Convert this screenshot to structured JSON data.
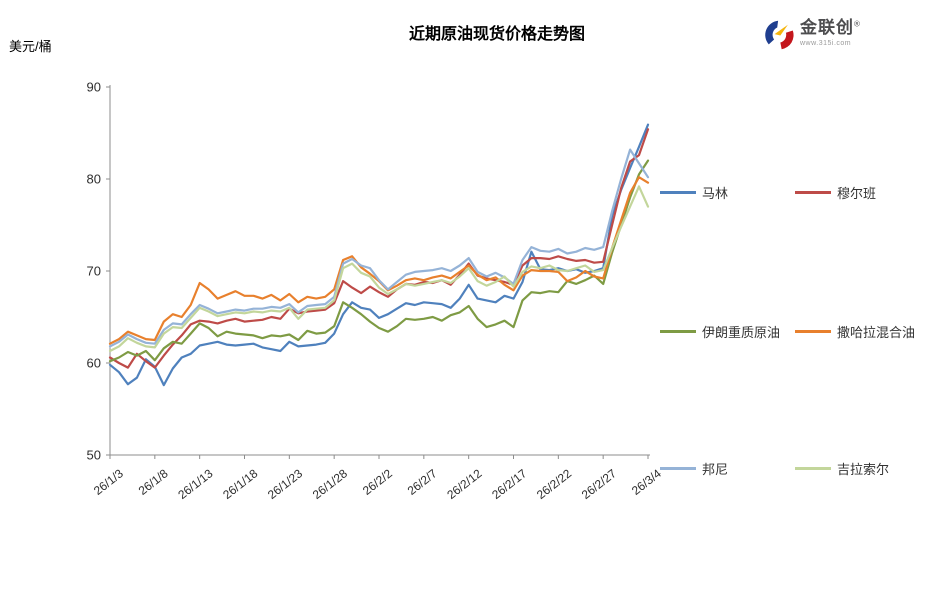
{
  "title": "近期原油现货价格走势图",
  "unit_label": "美元/桶",
  "logo": {
    "brand": "金联创",
    "reg_mark": "®",
    "url_text": "www.315i.com"
  },
  "chart_data": {
    "type": "line",
    "title": "近期原油现货价格走势图",
    "ylabel": "美元/桶",
    "ylim": [
      50,
      90
    ],
    "y_ticks": [
      50,
      60,
      70,
      80,
      90
    ],
    "grid": false,
    "legend_position": "right",
    "x_tick_labels": [
      "26/1/3",
      "26/1/8",
      "26/1/13",
      "26/1/18",
      "26/1/23",
      "26/1/28",
      "26/2/2",
      "26/2/7",
      "26/2/12",
      "26/2/17",
      "26/2/22",
      "26/2/27",
      "26/3/4"
    ],
    "x": [
      "26/1/3",
      "26/1/4",
      "26/1/5",
      "26/1/6",
      "26/1/7",
      "26/1/8",
      "26/1/9",
      "26/1/10",
      "26/1/11",
      "26/1/12",
      "26/1/13",
      "26/1/14",
      "26/1/15",
      "26/1/16",
      "26/1/17",
      "26/1/18",
      "26/1/19",
      "26/1/20",
      "26/1/21",
      "26/1/22",
      "26/1/23",
      "26/1/24",
      "26/1/25",
      "26/1/26",
      "26/1/27",
      "26/1/28",
      "26/1/29",
      "26/1/30",
      "26/1/31",
      "26/2/1",
      "26/2/2",
      "26/2/3",
      "26/2/4",
      "26/2/5",
      "26/2/6",
      "26/2/7",
      "26/2/8",
      "26/2/9",
      "26/2/10",
      "26/2/11",
      "26/2/12",
      "26/2/13",
      "26/2/14",
      "26/2/15",
      "26/2/16",
      "26/2/17",
      "26/2/18",
      "26/2/19",
      "26/2/20",
      "26/2/21",
      "26/2/22",
      "26/2/23",
      "26/2/24",
      "26/2/25",
      "26/2/26",
      "26/2/27",
      "26/2/28",
      "26/3/1",
      "26/3/2",
      "26/3/3",
      "26/3/4"
    ],
    "series": [
      {
        "name": "马林",
        "color": "#4F81BD",
        "values": [
          59.8,
          59.0,
          57.7,
          58.4,
          60.4,
          59.6,
          57.6,
          59.4,
          60.6,
          61.0,
          61.9,
          62.1,
          62.3,
          62.0,
          61.9,
          62.0,
          62.1,
          61.7,
          61.5,
          61.3,
          62.3,
          61.8,
          61.9,
          62.0,
          62.2,
          63.2,
          65.3,
          66.6,
          66.0,
          65.8,
          64.9,
          65.3,
          65.9,
          66.5,
          66.3,
          66.6,
          66.5,
          66.4,
          66.0,
          67.0,
          68.5,
          67.0,
          66.8,
          66.6,
          67.3,
          67.0,
          68.8,
          72.1,
          70.2,
          70.1,
          70.3,
          70.0,
          70.2,
          69.8,
          70.0,
          70.3,
          76.0,
          78.8,
          81.2,
          83.5,
          85.9
        ]
      },
      {
        "name": "穆尔班",
        "color": "#BE4B48",
        "values": [
          60.6,
          60.0,
          59.5,
          61.0,
          60.2,
          59.5,
          60.8,
          62.0,
          63.0,
          64.2,
          64.6,
          64.5,
          64.3,
          64.6,
          64.8,
          64.5,
          64.6,
          64.7,
          65.0,
          64.8,
          65.9,
          65.4,
          65.6,
          65.7,
          65.8,
          66.5,
          68.9,
          68.2,
          67.6,
          68.3,
          67.7,
          67.2,
          68.0,
          68.6,
          68.5,
          68.8,
          68.7,
          69.0,
          68.5,
          69.6,
          70.8,
          69.5,
          69.2,
          69.0,
          68.8,
          68.5,
          70.6,
          71.4,
          71.4,
          71.3,
          71.6,
          71.3,
          71.1,
          71.2,
          70.9,
          71.0,
          75.0,
          79.0,
          81.9,
          82.6,
          85.4
        ]
      },
      {
        "name": "伊朗重质原油",
        "color": "#7E9B44",
        "values": [
          60.2,
          60.6,
          61.2,
          60.8,
          61.3,
          60.3,
          61.6,
          62.3,
          62.1,
          63.2,
          64.3,
          63.8,
          62.9,
          63.4,
          63.2,
          63.1,
          63.0,
          62.7,
          63.0,
          62.9,
          63.1,
          62.5,
          63.5,
          63.2,
          63.3,
          64.0,
          66.6,
          66.0,
          65.3,
          64.5,
          63.8,
          63.4,
          64.0,
          64.8,
          64.7,
          64.8,
          65.0,
          64.6,
          65.2,
          65.5,
          66.2,
          64.8,
          63.9,
          64.2,
          64.6,
          63.9,
          66.8,
          67.7,
          67.6,
          67.8,
          67.7,
          68.9,
          68.6,
          69.0,
          69.5,
          68.6,
          72.0,
          75.0,
          78.0,
          80.5,
          82.0
        ]
      },
      {
        "name": "撒哈拉混合油",
        "color": "#E8802D",
        "values": [
          62.1,
          62.6,
          63.4,
          63.0,
          62.6,
          62.5,
          64.5,
          65.3,
          65.0,
          66.3,
          68.7,
          68.0,
          67.0,
          67.4,
          67.8,
          67.3,
          67.3,
          67.0,
          67.4,
          66.8,
          67.5,
          66.6,
          67.2,
          67.0,
          67.2,
          68.0,
          71.2,
          71.6,
          70.4,
          69.7,
          68.9,
          67.9,
          68.4,
          69.0,
          69.2,
          69.0,
          69.3,
          69.5,
          69.2,
          69.9,
          70.6,
          69.6,
          69.0,
          69.3,
          68.5,
          67.9,
          69.5,
          70.1,
          70.0,
          70.0,
          69.9,
          68.9,
          69.3,
          70.0,
          69.4,
          69.2,
          72.5,
          75.5,
          78.5,
          80.2,
          79.6
        ]
      },
      {
        "name": "邦尼",
        "color": "#95B3D7",
        "values": [
          61.8,
          62.3,
          63.1,
          62.6,
          62.2,
          62.1,
          63.6,
          64.3,
          64.2,
          65.3,
          66.3,
          65.9,
          65.4,
          65.6,
          65.8,
          65.7,
          65.9,
          65.9,
          66.1,
          66.0,
          66.4,
          65.5,
          66.2,
          66.3,
          66.4,
          67.2,
          70.8,
          71.3,
          70.6,
          70.3,
          69.0,
          68.0,
          68.8,
          69.6,
          69.9,
          70.0,
          70.1,
          70.3,
          70.0,
          70.6,
          71.4,
          69.9,
          69.4,
          69.8,
          69.3,
          68.6,
          71.2,
          72.6,
          72.2,
          72.1,
          72.4,
          71.9,
          72.1,
          72.5,
          72.3,
          72.6,
          76.5,
          80.0,
          83.2,
          81.7,
          80.2
        ]
      },
      {
        "name": "吉拉索尔",
        "color": "#C3D69B",
        "values": [
          61.3,
          61.8,
          62.7,
          62.2,
          61.8,
          61.7,
          63.2,
          63.9,
          63.8,
          64.9,
          66.0,
          65.6,
          65.1,
          65.3,
          65.5,
          65.4,
          65.6,
          65.5,
          65.7,
          65.6,
          66.0,
          64.8,
          65.8,
          65.9,
          66.0,
          66.8,
          70.3,
          70.8,
          69.8,
          69.4,
          68.2,
          67.5,
          68.0,
          68.6,
          68.4,
          68.6,
          68.8,
          69.0,
          68.7,
          69.4,
          70.3,
          68.9,
          68.4,
          68.8,
          69.4,
          68.3,
          69.9,
          70.5,
          70.3,
          70.6,
          70.1,
          70.0,
          70.3,
          70.6,
          69.9,
          70.1,
          72.5,
          74.8,
          77.0,
          79.2,
          77.0
        ]
      }
    ],
    "axis_color": "#8c8c8c",
    "tick_text_color": "#2e2e2e"
  }
}
